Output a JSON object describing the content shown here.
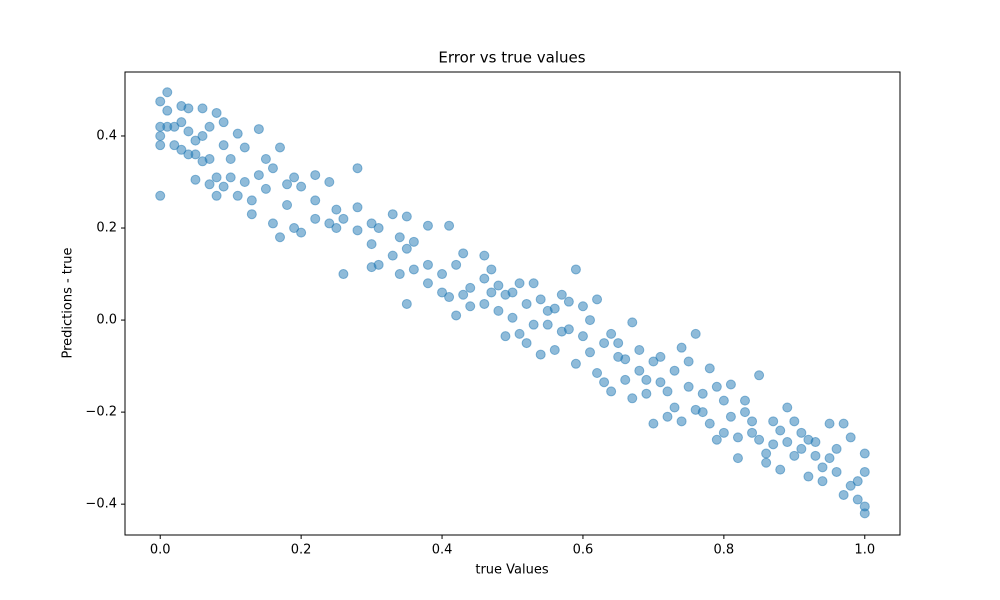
{
  "chart_data": {
    "type": "scatter",
    "title": "Error vs true values",
    "x_label": "true Values",
    "y_label": "Predictions - true",
    "color": "#1f77b4",
    "opacity": 0.5,
    "xlim": [
      -0.05,
      1.05
    ],
    "ylim": [
      -0.467,
      0.539
    ],
    "xticks": [
      {
        "value": 0,
        "label": "0.0"
      },
      {
        "value": 0.2,
        "label": "0.2"
      },
      {
        "value": 0.4,
        "label": "0.4"
      },
      {
        "value": 0.6,
        "label": "0.6"
      },
      {
        "value": 0.8,
        "label": "0.8"
      },
      {
        "value": 1,
        "label": "1.0"
      }
    ],
    "yticks": [
      {
        "value": -0.4,
        "label": "−0.4"
      },
      {
        "value": -0.2,
        "label": "−0.2"
      },
      {
        "value": 0,
        "label": "0.0"
      },
      {
        "value": 0.2,
        "label": "0.2"
      },
      {
        "value": 0.4,
        "label": "0.4"
      }
    ],
    "x": [
      0,
      0,
      0,
      0,
      0,
      0.01,
      0.01,
      0.01,
      0.02,
      0.02,
      0.03,
      0.03,
      0.03,
      0.04,
      0.04,
      0.04,
      0.05,
      0.05,
      0.05,
      0.06,
      0.06,
      0.06,
      0.07,
      0.07,
      0.07,
      0.08,
      0.08,
      0.08,
      0.09,
      0.09,
      0.09,
      0.1,
      0.1,
      0.11,
      0.11,
      0.12,
      0.12,
      0.13,
      0.13,
      0.14,
      0.14,
      0.15,
      0.15,
      0.16,
      0.16,
      0.17,
      0.17,
      0.18,
      0.18,
      0.19,
      0.19,
      0.2,
      0.2,
      0.22,
      0.22,
      0.22,
      0.24,
      0.24,
      0.25,
      0.25,
      0.26,
      0.26,
      0.28,
      0.28,
      0.28,
      0.3,
      0.3,
      0.3,
      0.31,
      0.31,
      0.33,
      0.33,
      0.34,
      0.34,
      0.35,
      0.35,
      0.35,
      0.36,
      0.36,
      0.38,
      0.38,
      0.38,
      0.4,
      0.4,
      0.41,
      0.41,
      0.42,
      0.42,
      0.43,
      0.43,
      0.44,
      0.44,
      0.46,
      0.46,
      0.46,
      0.47,
      0.47,
      0.48,
      0.48,
      0.49,
      0.49,
      0.5,
      0.5,
      0.51,
      0.51,
      0.52,
      0.52,
      0.53,
      0.53,
      0.54,
      0.54,
      0.55,
      0.55,
      0.56,
      0.56,
      0.57,
      0.57,
      0.58,
      0.58,
      0.59,
      0.59,
      0.6,
      0.6,
      0.61,
      0.61,
      0.62,
      0.62,
      0.63,
      0.63,
      0.64,
      0.64,
      0.65,
      0.65,
      0.66,
      0.66,
      0.67,
      0.67,
      0.68,
      0.68,
      0.69,
      0.69,
      0.7,
      0.7,
      0.71,
      0.71,
      0.72,
      0.72,
      0.73,
      0.73,
      0.74,
      0.74,
      0.75,
      0.75,
      0.76,
      0.76,
      0.77,
      0.77,
      0.78,
      0.78,
      0.79,
      0.79,
      0.8,
      0.8,
      0.81,
      0.81,
      0.82,
      0.82,
      0.83,
      0.83,
      0.84,
      0.84,
      0.85,
      0.85,
      0.86,
      0.86,
      0.87,
      0.87,
      0.88,
      0.88,
      0.89,
      0.89,
      0.9,
      0.9,
      0.91,
      0.91,
      0.92,
      0.92,
      0.93,
      0.93,
      0.94,
      0.94,
      0.95,
      0.95,
      0.96,
      0.96,
      0.97,
      0.97,
      0.98,
      0.98,
      0.99,
      0.99,
      1,
      1,
      1,
      1
    ],
    "y": [
      0.475,
      0.42,
      0.4,
      0.38,
      0.27,
      0.495,
      0.455,
      0.42,
      0.38,
      0.42,
      0.465,
      0.43,
      0.37,
      0.46,
      0.41,
      0.36,
      0.39,
      0.305,
      0.36,
      0.46,
      0.4,
      0.345,
      0.42,
      0.35,
      0.295,
      0.45,
      0.31,
      0.27,
      0.43,
      0.38,
      0.29,
      0.35,
      0.31,
      0.405,
      0.27,
      0.375,
      0.3,
      0.26,
      0.23,
      0.415,
      0.315,
      0.35,
      0.285,
      0.33,
      0.21,
      0.375,
      0.18,
      0.25,
      0.295,
      0.31,
      0.2,
      0.29,
      0.19,
      0.315,
      0.26,
      0.22,
      0.3,
      0.21,
      0.24,
      0.2,
      0.1,
      0.22,
      0.33,
      0.245,
      0.195,
      0.21,
      0.165,
      0.115,
      0.2,
      0.12,
      0.23,
      0.14,
      0.18,
      0.1,
      0.225,
      0.155,
      0.035,
      0.11,
      0.17,
      0.205,
      0.12,
      0.08,
      0.1,
      0.06,
      0.205,
      0.05,
      0.12,
      0.01,
      0.145,
      0.055,
      0.07,
      0.03,
      0.14,
      0.09,
      0.035,
      0.11,
      0.06,
      0.02,
      0.075,
      0.055,
      -0.035,
      0.06,
      0.005,
      0.08,
      -0.03,
      0.035,
      -0.05,
      0.08,
      -0.01,
      0.045,
      -0.075,
      -0.01,
      0.02,
      -0.065,
      0.025,
      0.055,
      -0.025,
      0.04,
      -0.02,
      0.11,
      -0.095,
      0.03,
      -0.035,
      -0.07,
      0,
      0.045,
      -0.115,
      -0.135,
      -0.05,
      -0.03,
      -0.155,
      -0.08,
      -0.05,
      -0.13,
      -0.085,
      -0.005,
      -0.17,
      -0.065,
      -0.11,
      -0.16,
      -0.13,
      -0.09,
      -0.225,
      -0.08,
      -0.135,
      -0.155,
      -0.21,
      -0.11,
      -0.19,
      -0.06,
      -0.22,
      -0.145,
      -0.09,
      -0.03,
      -0.195,
      -0.16,
      -0.2,
      -0.105,
      -0.225,
      -0.145,
      -0.26,
      -0.175,
      -0.245,
      -0.14,
      -0.21,
      -0.3,
      -0.255,
      -0.2,
      -0.175,
      -0.22,
      -0.245,
      -0.12,
      -0.26,
      -0.29,
      -0.31,
      -0.22,
      -0.27,
      -0.325,
      -0.24,
      -0.19,
      -0.265,
      -0.295,
      -0.22,
      -0.245,
      -0.28,
      -0.34,
      -0.26,
      -0.295,
      -0.265,
      -0.35,
      -0.32,
      -0.225,
      -0.3,
      -0.33,
      -0.28,
      -0.225,
      -0.38,
      -0.255,
      -0.36,
      -0.35,
      -0.39,
      -0.29,
      -0.42,
      -0.33,
      -0.405
    ]
  }
}
